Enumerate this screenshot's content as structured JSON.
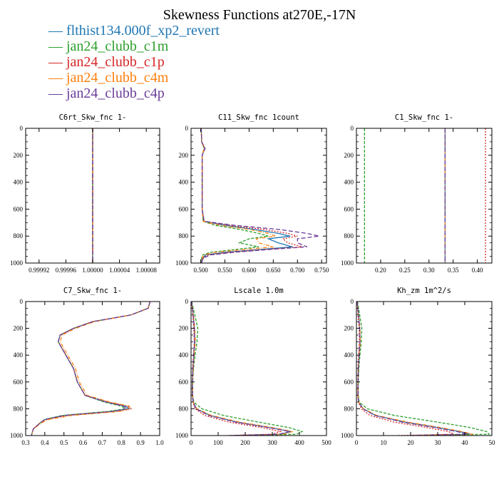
{
  "title": "Skewness Functions at270E,-17N",
  "legend": [
    {
      "name": "flthist134.000f_xp2_revert",
      "color": "#1f77b4"
    },
    {
      "name": "jan24_clubb_c1m",
      "color": "#2ca02c"
    },
    {
      "name": "jan24_clubb_c1p",
      "color": "#d62728"
    },
    {
      "name": "jan24_clubb_c4m",
      "color": "#ff7f0e"
    },
    {
      "name": "jan24_clubb_c4p",
      "color": "#6a3d9a"
    }
  ],
  "chart_data": [
    {
      "type": "line",
      "title": "C6rt_Skw_fnc   1-",
      "xlim": [
        0.9999,
        1.0001
      ],
      "ylim": [
        1000,
        0
      ],
      "xticks": [
        "0.99992",
        "0.99996",
        "1.00000",
        "1.00004",
        "1.00008"
      ],
      "xtick_values": [
        0.99992,
        0.99996,
        1.0,
        1.00004,
        1.00008
      ],
      "yticks": [
        "0",
        "200",
        "400",
        "600",
        "800",
        "1000"
      ],
      "y": [
        0,
        1000
      ],
      "series": [
        {
          "name": "flthist134.000f_xp2_revert",
          "x": [
            1.0,
            1.0
          ]
        },
        {
          "name": "jan24_clubb_c1m",
          "x": [
            1.0,
            1.0
          ]
        },
        {
          "name": "jan24_clubb_c1p",
          "x": [
            1.0,
            1.0
          ]
        },
        {
          "name": "jan24_clubb_c4m",
          "x": [
            1.0,
            1.0
          ]
        },
        {
          "name": "jan24_clubb_c4p",
          "x": [
            1.0,
            1.0
          ]
        }
      ]
    },
    {
      "type": "line",
      "title": "C11_Skw_fnc   1count",
      "xlim": [
        0.48,
        0.76
      ],
      "ylim": [
        1000,
        0
      ],
      "xticks": [
        "0.500",
        "0.550",
        "0.600",
        "0.650",
        "0.700",
        "0.750"
      ],
      "xtick_values": [
        0.5,
        0.55,
        0.6,
        0.65,
        0.7,
        0.75
      ],
      "yticks": [
        "0",
        "200",
        "400",
        "600",
        "800",
        "1000"
      ],
      "y": [
        0,
        100,
        150,
        200,
        400,
        600,
        690,
        720,
        750,
        780,
        800,
        820,
        850,
        880,
        900,
        920,
        940,
        960,
        980,
        1000
      ],
      "series": [
        {
          "name": "flthist134.000f_xp2_revert",
          "x": [
            0.501,
            0.502,
            0.508,
            0.503,
            0.503,
            0.503,
            0.506,
            0.55,
            0.61,
            0.66,
            0.685,
            0.64,
            0.66,
            0.69,
            0.62,
            0.55,
            0.51,
            0.505,
            0.502,
            0.502
          ]
        },
        {
          "name": "jan24_clubb_c1m",
          "x": [
            0.501,
            0.502,
            0.507,
            0.503,
            0.503,
            0.503,
            0.505,
            0.53,
            0.58,
            0.62,
            0.64,
            0.6,
            0.58,
            0.62,
            0.57,
            0.52,
            0.504,
            0.502,
            0.501,
            0.501
          ]
        },
        {
          "name": "jan24_clubb_c1p",
          "x": [
            0.501,
            0.502,
            0.509,
            0.503,
            0.503,
            0.503,
            0.507,
            0.56,
            0.63,
            0.68,
            0.7,
            0.67,
            0.68,
            0.71,
            0.63,
            0.56,
            0.515,
            0.506,
            0.503,
            0.502
          ]
        },
        {
          "name": "jan24_clubb_c4m",
          "x": [
            0.501,
            0.502,
            0.507,
            0.503,
            0.503,
            0.503,
            0.505,
            0.54,
            0.6,
            0.64,
            0.655,
            0.615,
            0.62,
            0.65,
            0.59,
            0.53,
            0.507,
            0.503,
            0.502,
            0.501
          ]
        },
        {
          "name": "jan24_clubb_c4p",
          "x": [
            0.501,
            0.502,
            0.509,
            0.503,
            0.503,
            0.503,
            0.507,
            0.57,
            0.66,
            0.72,
            0.745,
            0.7,
            0.7,
            0.72,
            0.64,
            0.57,
            0.52,
            0.507,
            0.503,
            0.502
          ]
        }
      ]
    },
    {
      "type": "line",
      "title": "C1_Skw_fnc   1-",
      "xlim": [
        0.15,
        0.43
      ],
      "ylim": [
        1000,
        0
      ],
      "xticks": [
        "0.20",
        "0.25",
        "0.30",
        "0.35",
        "0.40"
      ],
      "xtick_values": [
        0.2,
        0.25,
        0.3,
        0.35,
        0.4
      ],
      "yticks": [
        "0",
        "200",
        "400",
        "600",
        "800",
        "1000"
      ],
      "y": [
        0,
        1000
      ],
      "series": [
        {
          "name": "flthist134.000f_xp2_revert",
          "x": [
            0.3333,
            0.3333
          ]
        },
        {
          "name": "jan24_clubb_c1m",
          "x": [
            0.1667,
            0.1667
          ]
        },
        {
          "name": "jan24_clubb_c1p",
          "x": [
            0.4167,
            0.4167
          ]
        },
        {
          "name": "jan24_clubb_c4m",
          "x": [
            0.3333,
            0.3333
          ]
        },
        {
          "name": "jan24_clubb_c4p",
          "x": [
            0.3333,
            0.3333
          ]
        }
      ]
    },
    {
      "type": "line",
      "title": "C7_Skw_fnc   1-",
      "xlim": [
        0.3,
        1.0
      ],
      "ylim": [
        1000,
        0
      ],
      "xticks": [
        "0.3",
        "0.4",
        "0.5",
        "0.6",
        "0.7",
        "0.8",
        "0.9",
        "1.0"
      ],
      "xtick_values": [
        0.3,
        0.4,
        0.5,
        0.6,
        0.7,
        0.8,
        0.9,
        1.0
      ],
      "yticks": [
        "0",
        "200",
        "400",
        "600",
        "800",
        "1000"
      ],
      "y": [
        0,
        50,
        100,
        150,
        200,
        250,
        300,
        400,
        500,
        600,
        700,
        750,
        780,
        800,
        820,
        850,
        880,
        900,
        950,
        1000
      ],
      "series": [
        {
          "name": "flthist134.000f_xp2_revert",
          "x": [
            0.95,
            0.94,
            0.85,
            0.65,
            0.55,
            0.48,
            0.47,
            0.51,
            0.55,
            0.57,
            0.61,
            0.72,
            0.82,
            0.84,
            0.75,
            0.5,
            0.4,
            0.38,
            0.34,
            0.33
          ]
        },
        {
          "name": "jan24_clubb_c1m",
          "x": [
            0.95,
            0.94,
            0.85,
            0.65,
            0.55,
            0.48,
            0.47,
            0.51,
            0.55,
            0.57,
            0.61,
            0.71,
            0.8,
            0.82,
            0.73,
            0.49,
            0.4,
            0.38,
            0.34,
            0.33
          ]
        },
        {
          "name": "jan24_clubb_c1p",
          "x": [
            0.95,
            0.94,
            0.85,
            0.65,
            0.55,
            0.48,
            0.47,
            0.51,
            0.55,
            0.57,
            0.61,
            0.73,
            0.83,
            0.85,
            0.77,
            0.52,
            0.41,
            0.38,
            0.34,
            0.33
          ]
        },
        {
          "name": "jan24_clubb_c4m",
          "x": [
            0.95,
            0.94,
            0.85,
            0.66,
            0.56,
            0.49,
            0.48,
            0.52,
            0.56,
            0.58,
            0.62,
            0.74,
            0.84,
            0.85,
            0.79,
            0.54,
            0.42,
            0.39,
            0.34,
            0.33
          ]
        },
        {
          "name": "jan24_clubb_c4p",
          "x": [
            0.95,
            0.94,
            0.85,
            0.65,
            0.55,
            0.48,
            0.47,
            0.51,
            0.55,
            0.57,
            0.61,
            0.72,
            0.81,
            0.83,
            0.75,
            0.5,
            0.4,
            0.38,
            0.34,
            0.33
          ]
        }
      ]
    },
    {
      "type": "line",
      "title": "Lscale   1.0m",
      "xlim": [
        0,
        500
      ],
      "ylim": [
        1000,
        0
      ],
      "xticks": [
        "0",
        "100",
        "200",
        "300",
        "400",
        "500"
      ],
      "xtick_values": [
        0,
        100,
        200,
        300,
        400,
        500
      ],
      "yticks": [
        "0",
        "200",
        "400",
        "600",
        "800",
        "1000"
      ],
      "y": [
        0,
        50,
        100,
        200,
        300,
        400,
        500,
        600,
        700,
        750,
        800,
        850,
        900,
        940,
        970,
        990,
        1000
      ],
      "series": [
        {
          "name": "flthist134.000f_xp2_revert",
          "x": [
            2,
            5,
            8,
            12,
            14,
            10,
            7,
            5,
            5,
            8,
            20,
            70,
            170,
            290,
            370,
            330,
            150
          ]
        },
        {
          "name": "jan24_clubb_c1m",
          "x": [
            3,
            8,
            14,
            25,
            22,
            15,
            9,
            6,
            6,
            10,
            40,
            120,
            250,
            360,
            410,
            390,
            200
          ]
        },
        {
          "name": "jan24_clubb_c1p",
          "x": [
            2,
            4,
            7,
            10,
            12,
            9,
            6,
            5,
            5,
            7,
            15,
            50,
            140,
            260,
            330,
            300,
            130
          ]
        },
        {
          "name": "jan24_clubb_c4m",
          "x": [
            2,
            5,
            9,
            14,
            16,
            11,
            8,
            5,
            5,
            8,
            22,
            75,
            180,
            300,
            375,
            340,
            160
          ]
        },
        {
          "name": "jan24_clubb_c4p",
          "x": [
            2,
            5,
            8,
            12,
            13,
            10,
            7,
            5,
            5,
            8,
            18,
            65,
            165,
            285,
            365,
            325,
            145
          ]
        }
      ]
    },
    {
      "type": "line",
      "title": "Kh_zm   1m^2/s",
      "xlim": [
        0,
        50
      ],
      "ylim": [
        1000,
        0
      ],
      "xticks": [
        "0",
        "10",
        "20",
        "30",
        "40",
        "50"
      ],
      "xtick_values": [
        0,
        10,
        20,
        30,
        40,
        50
      ],
      "yticks": [
        "0",
        "200",
        "400",
        "600",
        "800",
        "1000"
      ],
      "y": [
        0,
        50,
        100,
        200,
        300,
        400,
        500,
        600,
        700,
        750,
        800,
        850,
        900,
        940,
        970,
        990,
        1000
      ],
      "series": [
        {
          "name": "flthist134.000f_xp2_revert",
          "x": [
            0.3,
            0.5,
            0.8,
            1.2,
            1.3,
            1.0,
            0.7,
            0.6,
            0.6,
            0.8,
            2.5,
            7,
            18,
            30,
            38,
            42,
            20
          ]
        },
        {
          "name": "jan24_clubb_c1m",
          "x": [
            0.4,
            0.8,
            1.2,
            2.0,
            1.8,
            1.3,
            0.9,
            0.7,
            0.7,
            1.0,
            4,
            14,
            30,
            42,
            48,
            49,
            25
          ]
        },
        {
          "name": "jan24_clubb_c1p",
          "x": [
            0.3,
            0.4,
            0.6,
            1.0,
            1.1,
            0.8,
            0.6,
            0.5,
            0.5,
            0.7,
            1.8,
            5,
            14,
            26,
            34,
            36,
            15
          ]
        },
        {
          "name": "jan24_clubb_c4m",
          "x": [
            0.3,
            0.5,
            0.8,
            1.3,
            1.4,
            1.0,
            0.7,
            0.6,
            0.6,
            0.8,
            2.6,
            7.5,
            19,
            31,
            39,
            43,
            21
          ]
        },
        {
          "name": "jan24_clubb_c4p",
          "x": [
            0.3,
            0.5,
            0.8,
            1.2,
            1.3,
            1.0,
            0.7,
            0.6,
            0.6,
            0.8,
            2.4,
            6.8,
            17,
            29,
            37,
            41,
            19
          ]
        }
      ]
    }
  ]
}
